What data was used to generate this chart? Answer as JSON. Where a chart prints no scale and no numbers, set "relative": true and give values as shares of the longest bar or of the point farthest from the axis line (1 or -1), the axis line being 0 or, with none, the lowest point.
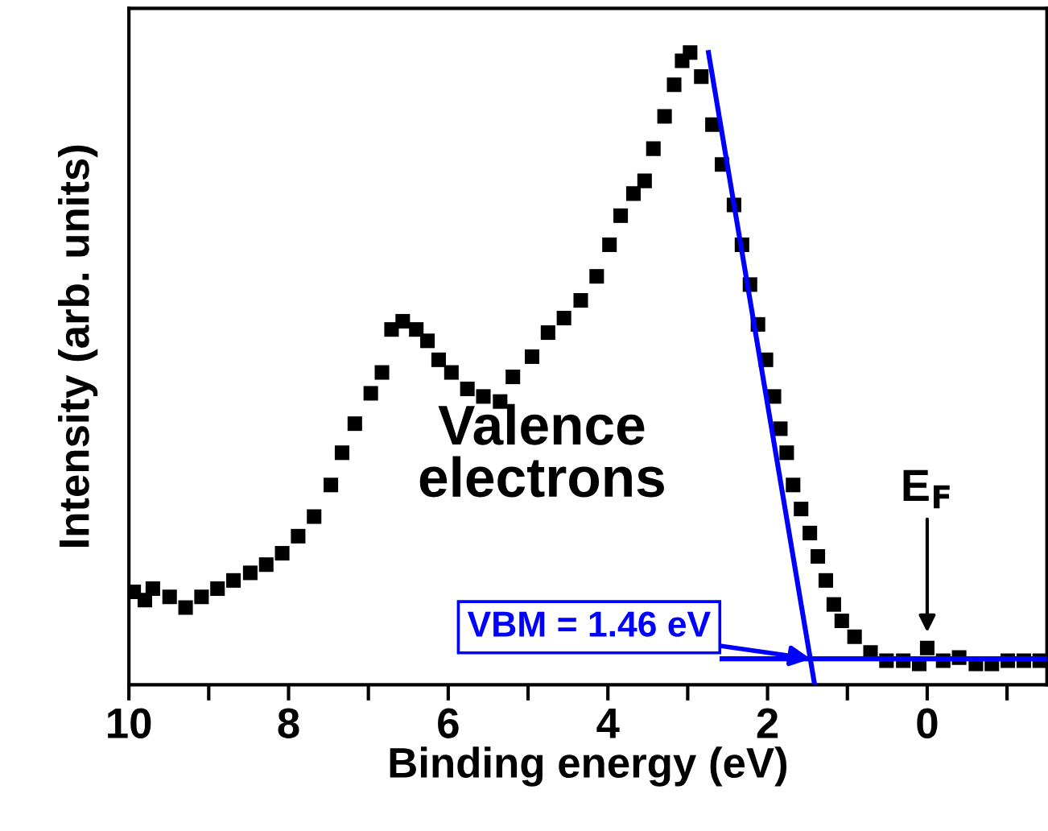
{
  "chart_data": {
    "type": "scatter",
    "xlabel": "Binding energy (eV)",
    "ylabel": "Intensity (arb. units)",
    "relative": true,
    "xlim": [
      10,
      -1.5
    ],
    "xticks": [
      10,
      {
        "value": 9,
        "label": null
      },
      8,
      {
        "value": 7,
        "label": null
      },
      6,
      {
        "value": 5,
        "label": null
      },
      4,
      {
        "value": 3,
        "label": null
      },
      2,
      {
        "value": 1,
        "label": null
      },
      0,
      {
        "value": -1,
        "label": null
      }
    ],
    "tick_labels": "x",
    "grid": false,
    "legend": false,
    "series": [
      {
        "color": "#000000",
        "marker": "square",
        "x": [
          9.94,
          9.8,
          9.7,
          9.49,
          9.29,
          9.09,
          8.89,
          8.69,
          8.48,
          8.28,
          8.08,
          7.88,
          7.68,
          7.47,
          7.33,
          7.17,
          6.97,
          6.83,
          6.71,
          6.57,
          6.4,
          6.26,
          6.12,
          5.96,
          5.76,
          5.56,
          5.35,
          5.19,
          4.95,
          4.75,
          4.55,
          4.34,
          4.14,
          3.98,
          3.84,
          3.68,
          3.54,
          3.43,
          3.29,
          3.17,
          3.07,
          2.97,
          2.83,
          2.69,
          2.57,
          2.42,
          2.32,
          2.22,
          2.12,
          2.02,
          1.92,
          1.84,
          1.76,
          1.68,
          1.58,
          1.47,
          1.37,
          1.27,
          1.17,
          1.07,
          0.91,
          0.71,
          0.51,
          0.3,
          0.1,
          0.0,
          -0.2,
          -0.4,
          -0.61,
          -0.81,
          -1.01,
          -1.21,
          -1.41
        ],
        "values": [
          0.147,
          0.134,
          0.152,
          0.139,
          0.122,
          0.139,
          0.152,
          0.165,
          0.177,
          0.19,
          0.208,
          0.235,
          0.266,
          0.316,
          0.367,
          0.413,
          0.461,
          0.494,
          0.562,
          0.575,
          0.562,
          0.544,
          0.514,
          0.494,
          0.468,
          0.456,
          0.448,
          0.487,
          0.519,
          0.557,
          0.58,
          0.608,
          0.646,
          0.696,
          0.742,
          0.777,
          0.797,
          0.848,
          0.899,
          0.949,
          0.987,
          1.0,
          0.962,
          0.886,
          0.823,
          0.759,
          0.696,
          0.633,
          0.57,
          0.514,
          0.456,
          0.405,
          0.367,
          0.316,
          0.278,
          0.24,
          0.203,
          0.165,
          0.127,
          0.101,
          0.076,
          0.051,
          0.038,
          0.038,
          0.033,
          0.058,
          0.038,
          0.043,
          0.033,
          0.033,
          0.038,
          0.038,
          0.038
        ]
      },
      {
        "type": "line",
        "color": "#0000ff",
        "line_style": "solid",
        "x": [
          2.74,
          1.41
        ],
        "values": [
          1.0,
          0.0
        ]
      },
      {
        "type": "line",
        "color": "#0000ff",
        "line_style": "solid",
        "x": [
          2.57,
          -1.5
        ],
        "values": [
          0.041,
          0.041
        ]
      }
    ],
    "annotations": [
      "Valence\nelectrons",
      {
        "text": "VBM = 1.46 eV",
        "x": 1.46,
        "y": 0.041
      },
      {
        "text": "E$_{F}$",
        "x": 0,
        "y": 0.076
      }
    ]
  }
}
